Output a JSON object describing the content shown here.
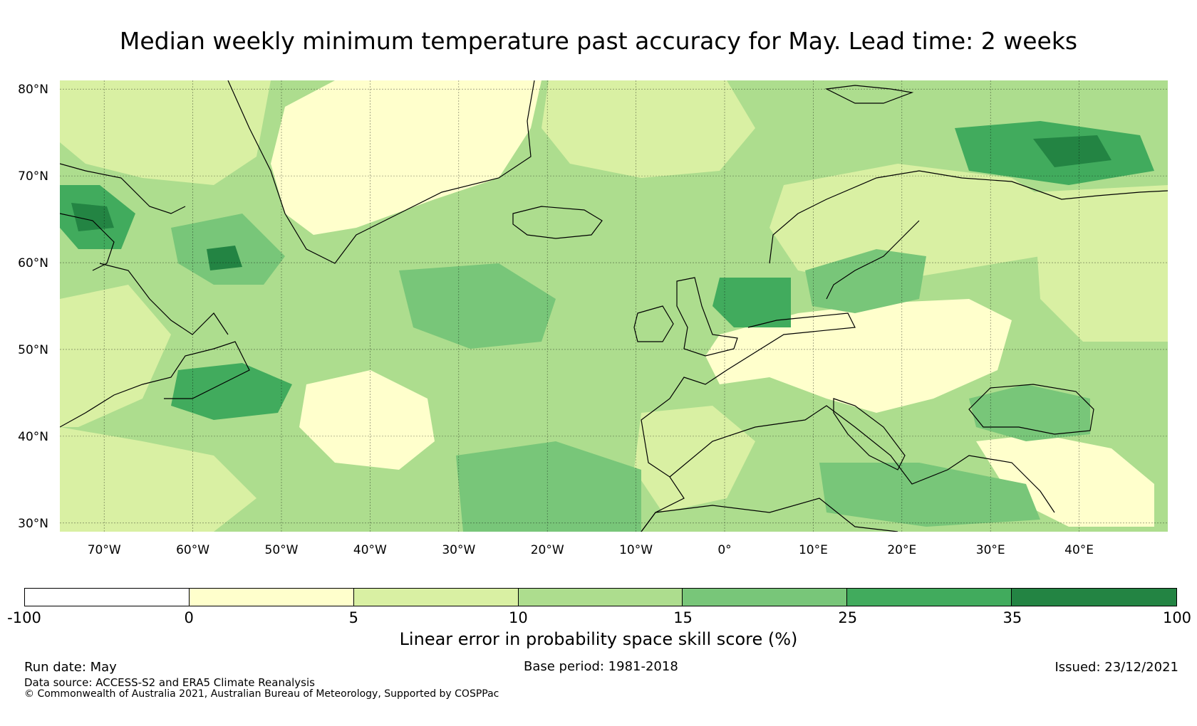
{
  "title": "Median weekly minimum temperature past accuracy for May. Lead time: 2 weeks",
  "map": {
    "lat_labels": [
      "80°N",
      "70°N",
      "60°N",
      "50°N",
      "40°N",
      "30°N"
    ],
    "lat_values": [
      80,
      70,
      60,
      50,
      40,
      30
    ],
    "lon_labels": [
      "70°W",
      "60°W",
      "50°W",
      "40°W",
      "30°W",
      "20°W",
      "10°W",
      "0°",
      "10°E",
      "20°E",
      "30°E",
      "40°E"
    ],
    "lon_values": [
      -70,
      -60,
      -50,
      -40,
      -30,
      -20,
      -10,
      0,
      10,
      20,
      30,
      40
    ],
    "lon_range": [
      -75,
      50
    ],
    "lat_range": [
      29,
      81
    ]
  },
  "colorbar": {
    "ticks": [
      "-100",
      "0",
      "5",
      "10",
      "15",
      "25",
      "35",
      "100"
    ],
    "colors": [
      "#ffffff",
      "#ffffcc",
      "#d9f0a3",
      "#addd8e",
      "#78c679",
      "#41ab5d",
      "#238443"
    ],
    "label": "Linear error in probability space skill score (%)"
  },
  "footer": {
    "run_date": "Run date: May",
    "base_period": "Base period: 1981-2018",
    "issued": "Issued: 23/12/2021",
    "data_source": "Data source: ACCESS-S2 and ERA5 Climate Reanalysis",
    "copyright": "© Commonwealth of Australia 2021, Australian Bureau of Meteorology, Supported by COSPPac"
  }
}
